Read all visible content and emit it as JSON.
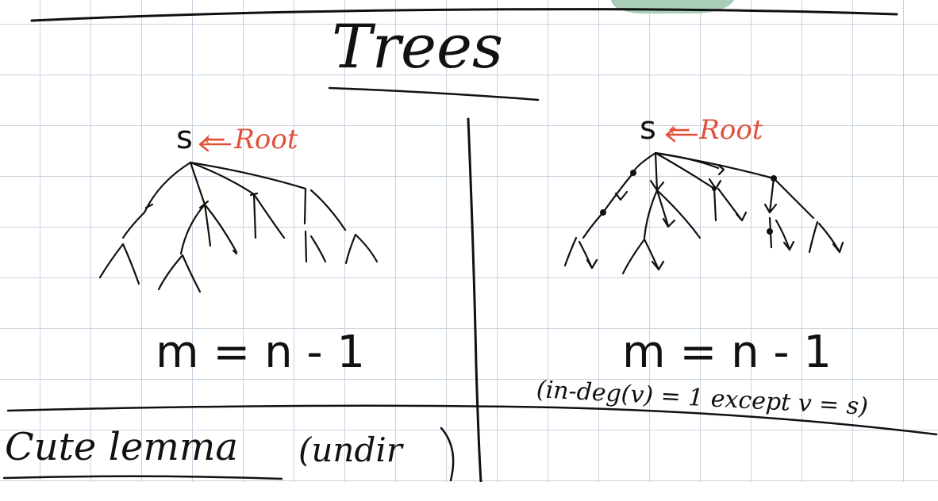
{
  "page": {
    "title": "Trees",
    "left_tree": {
      "root_letter": "s",
      "root_label": "← Root",
      "equation": "m = n - 1"
    },
    "right_tree": {
      "root_letter": "s",
      "root_label": "← Root",
      "equation": "m = n - 1",
      "note": "(in-deg(v) = 1 except v = s)"
    },
    "bottom_heading": "Cute lemma",
    "bottom_aside": "(undir"
  },
  "colors": {
    "ink": "#111111",
    "annotation": "#e0513c",
    "grid": "#c9d3e0",
    "sticky_note": "#a9cdb6"
  }
}
